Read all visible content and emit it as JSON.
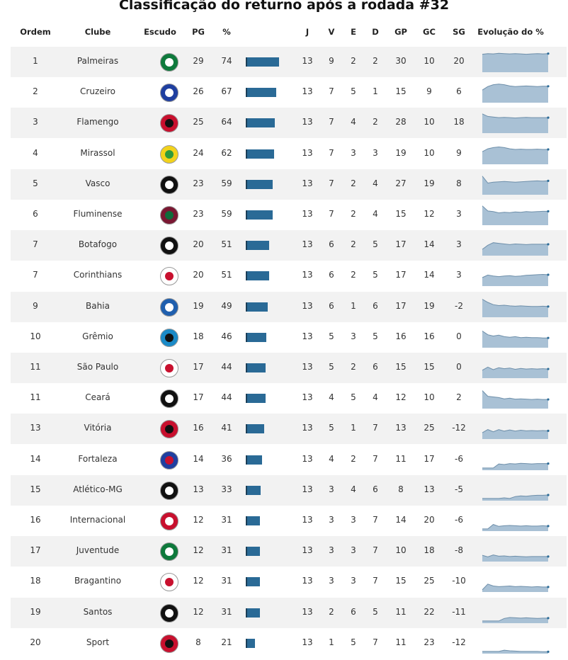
{
  "title": "Classificação do returno após a rodada #32",
  "headers": {
    "ordem": "Ordem",
    "clube": "Clube",
    "escudo": "Escudo",
    "pg": "PG",
    "pct": "%",
    "j": "J",
    "v": "V",
    "e": "E",
    "d": "D",
    "gp": "GP",
    "gc": "GC",
    "sg": "SG",
    "evolucao": "Evolução do %"
  },
  "colors": {
    "bar": "#2a6a96",
    "spark_fill": "#a9c1d5",
    "spark_line": "#6e8faa",
    "row_shade": "#f2f2f2"
  },
  "chart_data": {
    "type": "table",
    "title": "Classificação do returno após a rodada #32",
    "columns": [
      "Ordem",
      "Clube",
      "Escudo",
      "PG",
      "%",
      "J",
      "V",
      "E",
      "D",
      "GP",
      "GC",
      "SG",
      "Evolução do %"
    ],
    "rows": [
      {
        "ordem": "1",
        "clube": "Palmeiras",
        "pg": "29",
        "pct": "74",
        "j": "13",
        "v": "9",
        "e": "2",
        "d": "2",
        "gp": "30",
        "gc": "10",
        "sg": "20",
        "crest": [
          "#0e7a3c",
          "#ffffff"
        ],
        "evo": [
          72,
          74,
          73,
          75,
          74,
          73,
          74,
          73,
          72,
          73,
          74,
          73,
          74
        ]
      },
      {
        "ordem": "2",
        "clube": "Cruzeiro",
        "pg": "26",
        "pct": "67",
        "j": "13",
        "v": "7",
        "e": "5",
        "d": "1",
        "gp": "15",
        "gc": "9",
        "sg": "6",
        "crest": [
          "#1f3fa0",
          "#ffffff"
        ],
        "evo": [
          55,
          66,
          72,
          74,
          72,
          68,
          66,
          67,
          68,
          67,
          66,
          67,
          67
        ]
      },
      {
        "ordem": "3",
        "clube": "Flamengo",
        "pg": "25",
        "pct": "64",
        "j": "13",
        "v": "7",
        "e": "4",
        "d": "2",
        "gp": "28",
        "gc": "10",
        "sg": "18",
        "crest": [
          "#c8102e",
          "#111111"
        ],
        "evo": [
          76,
          68,
          66,
          64,
          65,
          64,
          63,
          64,
          65,
          64,
          64,
          64,
          64
        ]
      },
      {
        "ordem": "4",
        "clube": "Mirassol",
        "pg": "24",
        "pct": "62",
        "j": "13",
        "v": "7",
        "e": "3",
        "d": "3",
        "gp": "19",
        "gc": "10",
        "sg": "9",
        "crest": [
          "#f2d21b",
          "#2e9a3d"
        ],
        "evo": [
          55,
          64,
          68,
          70,
          68,
          64,
          62,
          63,
          62,
          62,
          63,
          62,
          62
        ]
      },
      {
        "ordem": "5",
        "clube": "Vasco",
        "pg": "23",
        "pct": "59",
        "j": "13",
        "v": "7",
        "e": "2",
        "d": "4",
        "gp": "27",
        "gc": "19",
        "sg": "8",
        "crest": [
          "#111111",
          "#ffffff"
        ],
        "evo": [
          74,
          52,
          55,
          56,
          57,
          56,
          55,
          56,
          57,
          58,
          59,
          58,
          59
        ]
      },
      {
        "ordem": "6",
        "clube": "Fluminense",
        "pg": "23",
        "pct": "59",
        "j": "13",
        "v": "7",
        "e": "2",
        "d": "4",
        "gp": "15",
        "gc": "12",
        "sg": "3",
        "crest": [
          "#7a1732",
          "#0e6b3a"
        ],
        "evo": [
          76,
          60,
          58,
          54,
          56,
          55,
          57,
          56,
          58,
          57,
          58,
          59,
          59
        ]
      },
      {
        "ordem": "7",
        "clube": "Botafogo",
        "pg": "20",
        "pct": "51",
        "j": "13",
        "v": "6",
        "e": "2",
        "d": "5",
        "gp": "17",
        "gc": "14",
        "sg": "3",
        "crest": [
          "#111111",
          "#ffffff"
        ],
        "evo": [
          35,
          48,
          56,
          54,
          52,
          50,
          52,
          51,
          50,
          51,
          51,
          51,
          51
        ]
      },
      {
        "ordem": "7",
        "clube": "Corinthians",
        "pg": "20",
        "pct": "51",
        "j": "13",
        "v": "6",
        "e": "2",
        "d": "5",
        "gp": "17",
        "gc": "14",
        "sg": "3",
        "crest": [
          "#ffffff",
          "#c8102e"
        ],
        "evo": [
          42,
          50,
          47,
          45,
          47,
          48,
          46,
          47,
          49,
          50,
          51,
          52,
          51
        ]
      },
      {
        "ordem": "9",
        "clube": "Bahia",
        "pg": "19",
        "pct": "49",
        "j": "13",
        "v": "6",
        "e": "1",
        "d": "6",
        "gp": "17",
        "gc": "19",
        "sg": "-2",
        "crest": [
          "#1f5fae",
          "#ffffff"
        ],
        "evo": [
          72,
          62,
          55,
          52,
          53,
          51,
          50,
          51,
          50,
          49,
          49,
          50,
          49
        ]
      },
      {
        "ordem": "10",
        "clube": "Grêmio",
        "pg": "18",
        "pct": "46",
        "j": "13",
        "v": "5",
        "e": "3",
        "d": "5",
        "gp": "16",
        "gc": "16",
        "sg": "0",
        "crest": [
          "#1a8ac7",
          "#111111"
        ],
        "evo": [
          68,
          56,
          52,
          55,
          50,
          48,
          50,
          47,
          48,
          47,
          47,
          46,
          46
        ]
      },
      {
        "ordem": "11",
        "clube": "São Paulo",
        "pg": "17",
        "pct": "44",
        "j": "13",
        "v": "5",
        "e": "2",
        "d": "6",
        "gp": "15",
        "gc": "15",
        "sg": "0",
        "crest": [
          "#ffffff",
          "#c8102e"
        ],
        "evo": [
          40,
          50,
          42,
          48,
          45,
          47,
          43,
          46,
          44,
          45,
          44,
          45,
          44
        ]
      },
      {
        "ordem": "11",
        "clube": "Ceará",
        "pg": "17",
        "pct": "44",
        "j": "13",
        "v": "4",
        "e": "5",
        "d": "4",
        "gp": "12",
        "gc": "10",
        "sg": "2",
        "crest": [
          "#111111",
          "#ffffff"
        ],
        "evo": [
          72,
          54,
          52,
          50,
          46,
          48,
          45,
          46,
          45,
          44,
          45,
          44,
          44
        ]
      },
      {
        "ordem": "13",
        "clube": "Vitória",
        "pg": "16",
        "pct": "41",
        "j": "13",
        "v": "5",
        "e": "1",
        "d": "7",
        "gp": "13",
        "gc": "25",
        "sg": "-12",
        "crest": [
          "#c8102e",
          "#111111"
        ],
        "evo": [
          35,
          45,
          38,
          45,
          40,
          44,
          40,
          43,
          41,
          42,
          41,
          42,
          41
        ]
      },
      {
        "ordem": "14",
        "clube": "Fortaleza",
        "pg": "14",
        "pct": "36",
        "j": "13",
        "v": "4",
        "e": "2",
        "d": "7",
        "gp": "11",
        "gc": "17",
        "sg": "-6",
        "crest": [
          "#1f3fa0",
          "#c8102e"
        ],
        "evo": [
          22,
          22,
          22,
          35,
          33,
          36,
          35,
          37,
          36,
          35,
          36,
          36,
          36
        ]
      },
      {
        "ordem": "15",
        "clube": "Atlético-MG",
        "pg": "13",
        "pct": "33",
        "j": "13",
        "v": "3",
        "e": "4",
        "d": "6",
        "gp": "8",
        "gc": "13",
        "sg": "-5",
        "crest": [
          "#111111",
          "#ffffff"
        ],
        "evo": [
          22,
          22,
          22,
          22,
          24,
          22,
          28,
          30,
          29,
          31,
          32,
          32,
          33
        ]
      },
      {
        "ordem": "16",
        "clube": "Internacional",
        "pg": "12",
        "pct": "31",
        "j": "13",
        "v": "3",
        "e": "3",
        "d": "7",
        "gp": "14",
        "gc": "20",
        "sg": "-6",
        "crest": [
          "#c8102e",
          "#ffffff"
        ],
        "evo": [
          22,
          22,
          36,
          30,
          32,
          33,
          32,
          31,
          32,
          31,
          31,
          32,
          31
        ]
      },
      {
        "ordem": "17",
        "clube": "Juventude",
        "pg": "12",
        "pct": "31",
        "j": "13",
        "v": "3",
        "e": "3",
        "d": "7",
        "gp": "10",
        "gc": "18",
        "sg": "-8",
        "crest": [
          "#0e7a3c",
          "#ffffff"
        ],
        "evo": [
          35,
          30,
          36,
          32,
          33,
          31,
          32,
          31,
          30,
          31,
          31,
          31,
          31
        ]
      },
      {
        "ordem": "18",
        "clube": "Bragantino",
        "pg": "12",
        "pct": "31",
        "j": "13",
        "v": "3",
        "e": "3",
        "d": "7",
        "gp": "15",
        "gc": "25",
        "sg": "-10",
        "crest": [
          "#ffffff",
          "#c8102e"
        ],
        "evo": [
          22,
          40,
          34,
          32,
          33,
          34,
          32,
          33,
          32,
          31,
          32,
          31,
          31
        ]
      },
      {
        "ordem": "19",
        "clube": "Santos",
        "pg": "12",
        "pct": "31",
        "j": "13",
        "v": "2",
        "e": "6",
        "d": "5",
        "gp": "11",
        "gc": "22",
        "sg": "-11",
        "crest": [
          "#111111",
          "#ffffff"
        ],
        "evo": [
          22,
          22,
          22,
          22,
          30,
          33,
          32,
          31,
          32,
          31,
          30,
          31,
          31
        ]
      },
      {
        "ordem": "20",
        "clube": "Sport",
        "pg": "8",
        "pct": "21",
        "j": "13",
        "v": "1",
        "e": "5",
        "d": "7",
        "gp": "11",
        "gc": "23",
        "sg": "-12",
        "crest": [
          "#c8102e",
          "#111111"
        ],
        "evo": [
          22,
          22,
          22,
          22,
          26,
          24,
          23,
          22,
          22,
          22,
          22,
          21,
          21
        ]
      }
    ]
  }
}
